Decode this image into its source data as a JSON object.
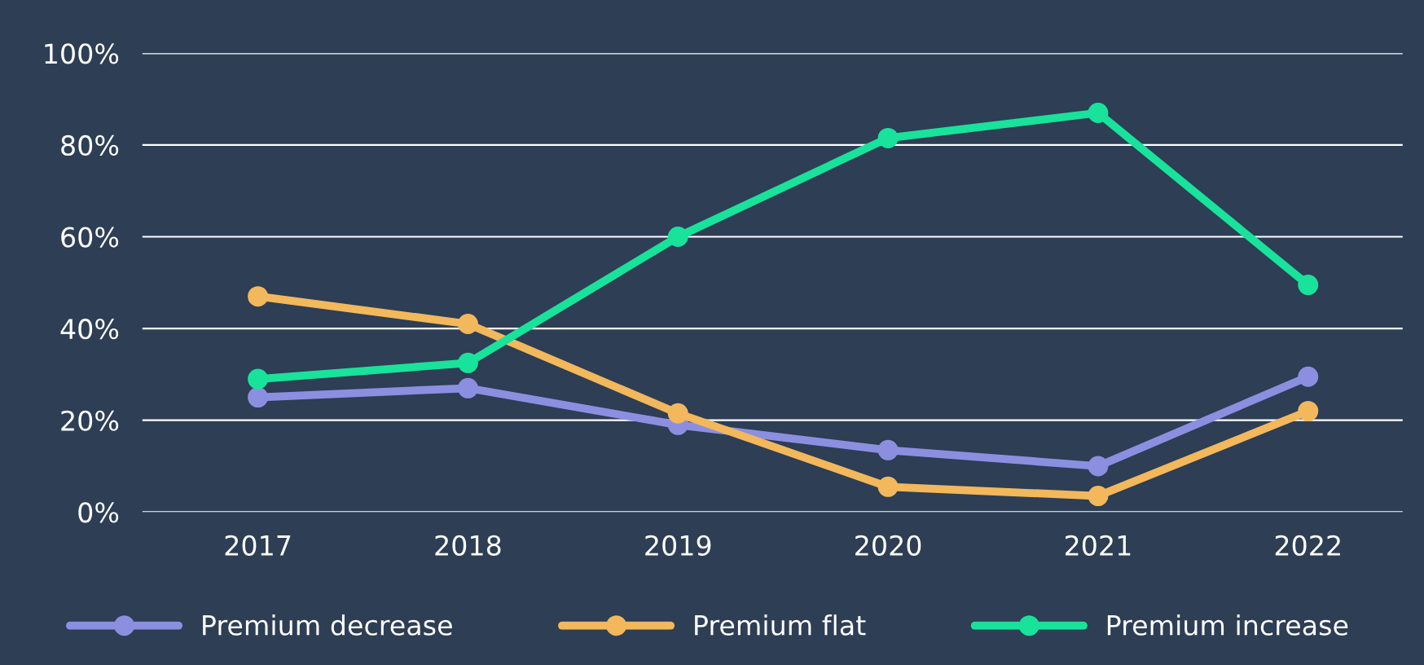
{
  "chart_data": {
    "type": "line",
    "categories": [
      "2017",
      "2018",
      "2019",
      "2020",
      "2021",
      "2022"
    ],
    "series": [
      {
        "name": "Premium decrease",
        "color": "#8c8fe0",
        "values": [
          25,
          27,
          19,
          13.5,
          10,
          29.5
        ]
      },
      {
        "name": "Premium flat",
        "color": "#f2b85b",
        "values": [
          47,
          41,
          21.5,
          5.5,
          3.5,
          22
        ]
      },
      {
        "name": "Premium increase",
        "color": "#19e29b",
        "values": [
          29,
          32.5,
          60,
          81.5,
          87,
          49.5
        ]
      }
    ],
    "ylim": [
      0,
      100
    ],
    "yticks": [
      {
        "value": 0,
        "label": "0%"
      },
      {
        "value": 20,
        "label": "20%"
      },
      {
        "value": 40,
        "label": "40%"
      },
      {
        "value": 60,
        "label": "60%"
      },
      {
        "value": 80,
        "label": "80%"
      },
      {
        "value": 100,
        "label": "100%"
      }
    ],
    "grid": "y",
    "legend": "bottom",
    "marker": "circle",
    "line_style": "solid"
  }
}
